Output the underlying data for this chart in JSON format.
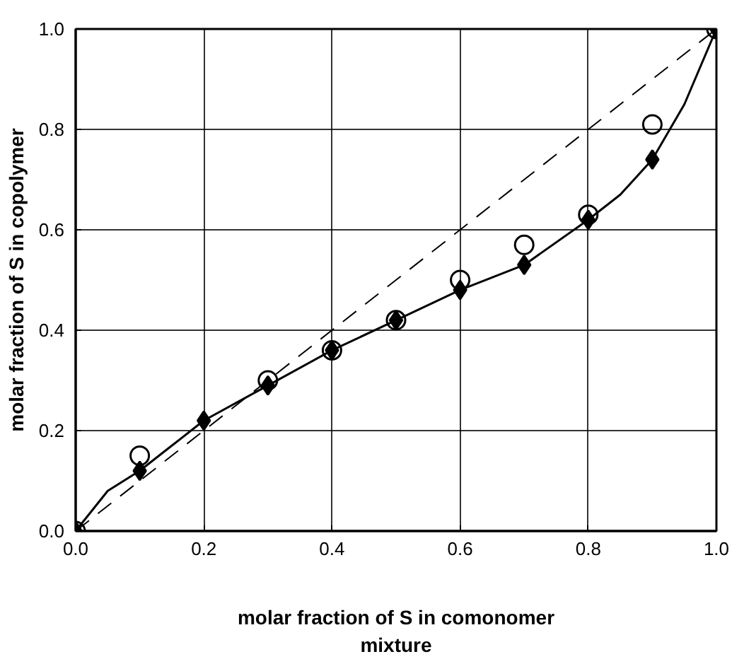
{
  "chart_data": {
    "type": "scatter",
    "xlabel": "molar fraction of S in comonomer mixture",
    "ylabel": "molar fraction of S in copolymer",
    "xlim": [
      0,
      1
    ],
    "ylim": [
      0,
      1
    ],
    "xticks": [
      {
        "value": 0,
        "label": "0.0"
      },
      {
        "value": 0.2,
        "label": "0.2"
      },
      {
        "value": 0.4,
        "label": "0.4"
      },
      {
        "value": 0.6,
        "label": "0.6"
      },
      {
        "value": 0.8,
        "label": "0.8"
      },
      {
        "value": 1,
        "label": "1.0"
      }
    ],
    "yticks": [
      {
        "value": 0,
        "label": "0.0"
      },
      {
        "value": 0.2,
        "label": "0.2"
      },
      {
        "value": 0.4,
        "label": "0.4"
      },
      {
        "value": 0.6,
        "label": "0.6"
      },
      {
        "value": 0.8,
        "label": "0.8"
      },
      {
        "value": 1,
        "label": "1.0"
      }
    ],
    "grid": true,
    "series": [
      {
        "type": "line",
        "color": "#000000",
        "line_style": "dashed",
        "marker": "none",
        "x": [
          0,
          1
        ],
        "values": [
          0,
          1
        ]
      },
      {
        "type": "line",
        "color": "#000000",
        "line_style": "solid",
        "marker": "none",
        "x": [
          0,
          0.05,
          0.1,
          0.15,
          0.2,
          0.3,
          0.4,
          0.5,
          0.6,
          0.7,
          0.8,
          0.85,
          0.9,
          0.95,
          1
        ],
        "values": [
          0,
          0.08,
          0.12,
          0.17,
          0.22,
          0.29,
          0.36,
          0.42,
          0.48,
          0.53,
          0.62,
          0.67,
          0.74,
          0.85,
          1
        ]
      },
      {
        "color": "#000000",
        "marker": "circle",
        "x": [
          0,
          0.1,
          0.3,
          0.4,
          0.5,
          0.6,
          0.7,
          0.8,
          0.9,
          1
        ],
        "values": [
          0,
          0.15,
          0.3,
          0.36,
          0.42,
          0.5,
          0.57,
          0.63,
          0.81,
          1
        ]
      },
      {
        "type": "scatter",
        "color": "#000000",
        "marker": "diamond",
        "x": [
          0,
          0.1,
          0.2,
          0.3,
          0.4,
          0.5,
          0.6,
          0.7,
          0.8,
          0.9,
          1
        ],
        "values": [
          0,
          0.12,
          0.22,
          0.29,
          0.36,
          0.42,
          0.48,
          0.53,
          0.62,
          0.74,
          1
        ]
      }
    ]
  }
}
